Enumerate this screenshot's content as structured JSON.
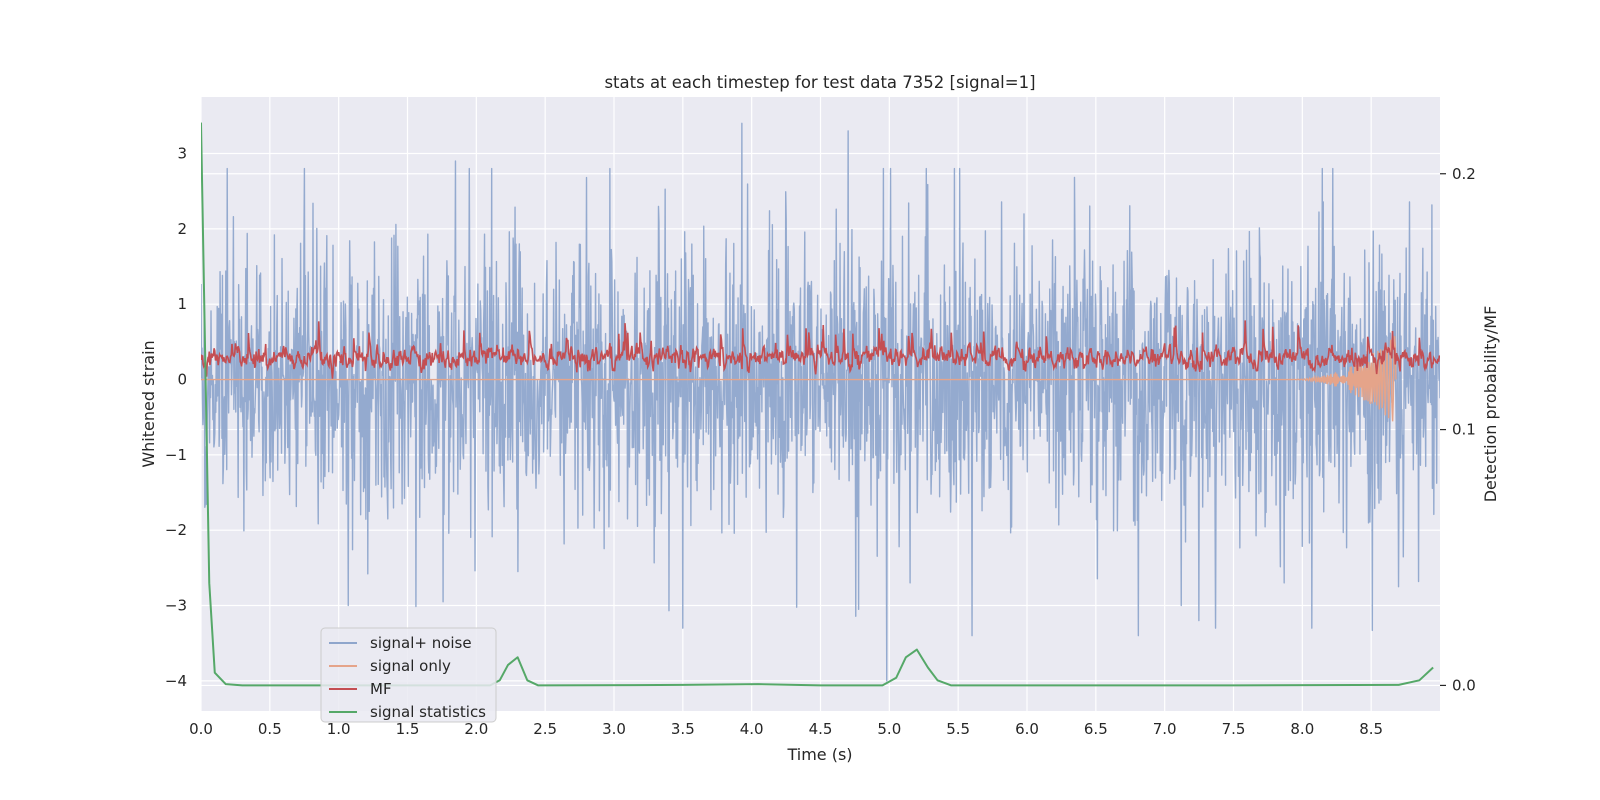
{
  "chart_data": {
    "type": "line",
    "title": "stats at each timestep for test data 7352 [signal=1]",
    "xlabel": "Time (s)",
    "ylabel": "Whitened strain",
    "y2label": "Detection probability/MF",
    "xlim": [
      0,
      9
    ],
    "ylim": [
      -4.4,
      3.75
    ],
    "y2lim": [
      -0.01,
      0.23
    ],
    "x_ticks": [
      "0.0",
      "0.5",
      "1.0",
      "1.5",
      "2.0",
      "2.5",
      "3.0",
      "3.5",
      "4.0",
      "4.5",
      "5.0",
      "5.5",
      "6.0",
      "6.5",
      "7.0",
      "7.5",
      "8.0",
      "8.5"
    ],
    "y_ticks": [
      "3",
      "2",
      "1",
      "0",
      "−1",
      "−2",
      "−3",
      "−4"
    ],
    "y2_ticks": [
      "0.2",
      "0.1",
      "0.0"
    ],
    "grid": true,
    "legend_position": "lower-left",
    "colors": {
      "background": "#eaeaf2",
      "grid": "#ffffff",
      "signal_noise": "#8fa6cc",
      "signal_only": "#e5a48a",
      "mf": "#c44e52",
      "signal_statistics": "#55a868"
    },
    "series": [
      {
        "name": "signal+ noise",
        "axis": "left",
        "style": "noise",
        "x_range": [
          0,
          9
        ],
        "min": -4.0,
        "max": 3.4,
        "peaks": [
          {
            "x": 0.75,
            "y": 2.8
          },
          {
            "x": 1.85,
            "y": 2.9
          },
          {
            "x": 1.95,
            "y": 2.8
          },
          {
            "x": 3.93,
            "y": 3.4
          },
          {
            "x": 4.7,
            "y": 3.3
          },
          {
            "x": 5.27,
            "y": 2.8
          },
          {
            "x": 1.07,
            "y": -3.0
          },
          {
            "x": 3.5,
            "y": -3.3
          },
          {
            "x": 4.98,
            "y": -4.0
          },
          {
            "x": 5.15,
            "y": -2.7
          },
          {
            "x": 7.12,
            "y": -3.0
          },
          {
            "x": 7.25,
            "y": -3.2
          },
          {
            "x": 7.37,
            "y": -3.3
          },
          {
            "x": 8.07,
            "y": -3.3
          },
          {
            "x": 8.7,
            "y": -2.75
          }
        ]
      },
      {
        "name": "signal only",
        "axis": "left",
        "style": "chirp",
        "x_range": [
          0,
          8.68
        ],
        "chirp_start": 7.9,
        "chirp_end": 8.68,
        "amplitude_max": 0.6
      },
      {
        "name": "MF",
        "axis": "left",
        "style": "noise",
        "x_range": [
          0,
          9
        ],
        "min": 0.0,
        "max": 0.9,
        "mean": 0.3
      },
      {
        "name": "signal statistics",
        "axis": "right",
        "style": "line",
        "x": [
          0,
          0.03,
          0.06,
          0.1,
          0.18,
          0.3,
          1.0,
          2.1,
          2.17,
          2.23,
          2.3,
          2.37,
          2.45,
          3.5,
          4.05,
          4.5,
          4.95,
          5.05,
          5.12,
          5.2,
          5.28,
          5.35,
          5.45,
          6.5,
          7.5,
          8.7,
          8.85,
          8.95
        ],
        "y": [
          0.22,
          0.13,
          0.04,
          0.005,
          0.0005,
          0.0,
          0.0,
          0.0,
          0.002,
          0.008,
          0.011,
          0.002,
          0.0,
          0.0002,
          0.0005,
          0.0,
          0.0,
          0.003,
          0.011,
          0.014,
          0.007,
          0.002,
          0.0,
          0.0,
          0.0,
          0.0002,
          0.002,
          0.007
        ]
      }
    ]
  }
}
